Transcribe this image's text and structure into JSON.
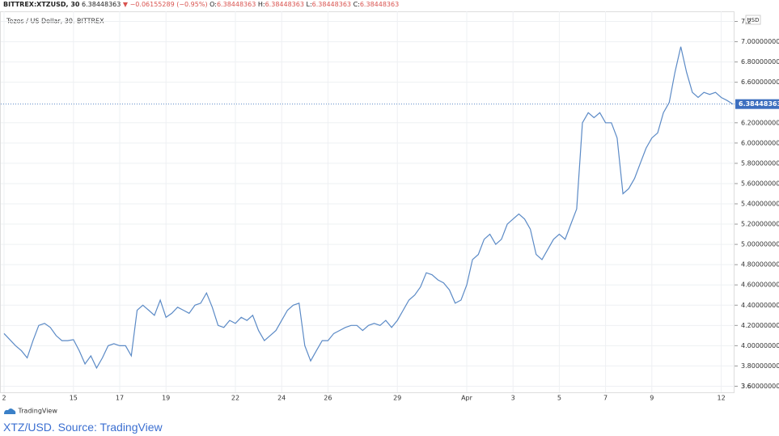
{
  "header": {
    "symbol": "BITTREX:XTZUSD, 30",
    "price": "6.38448363",
    "change": "▼ −0.06155289 (−0.95%)",
    "ohlc": [
      {
        "label": "O:",
        "value": "6.38448363"
      },
      {
        "label": "H:",
        "value": "6.38448363"
      },
      {
        "label": "L:",
        "value": "6.38448363"
      },
      {
        "label": "C:",
        "value": "6.38448363"
      }
    ]
  },
  "chart_data": {
    "type": "line",
    "title": "Tezos / US Dollar, 30, BITTREX",
    "currency": "USD",
    "color": "#5b8ac6",
    "categories": [
      "2",
      null,
      null,
      null,
      null,
      null,
      null,
      null,
      null,
      null,
      null,
      null,
      "15",
      null,
      null,
      null,
      null,
      null,
      null,
      null,
      "17",
      null,
      null,
      null,
      null,
      null,
      null,
      null,
      "19",
      null,
      null,
      null,
      null,
      null,
      null,
      null,
      null,
      null,
      null,
      null,
      "22",
      null,
      null,
      null,
      null,
      null,
      null,
      null,
      "24",
      null,
      null,
      null,
      null,
      null,
      null,
      null,
      "26",
      null,
      null,
      null,
      null,
      null,
      null,
      null,
      null,
      null,
      null,
      null,
      "29",
      null,
      null,
      null,
      null,
      null,
      null,
      null,
      null,
      null,
      null,
      null,
      "Apr",
      null,
      null,
      null,
      null,
      null,
      null,
      null,
      "3",
      null,
      null,
      null,
      null,
      null,
      null,
      null,
      "5",
      null,
      null,
      null,
      null,
      null,
      null,
      null,
      "7",
      null,
      null,
      null,
      null,
      null,
      null,
      null,
      "9",
      null,
      null,
      null,
      null,
      null,
      null,
      null,
      null,
      null,
      null,
      null,
      "12",
      null,
      null
    ],
    "values": [
      4.12,
      4.06,
      4.0,
      3.95,
      3.88,
      4.05,
      4.2,
      4.22,
      4.18,
      4.1,
      4.05,
      4.05,
      4.06,
      3.95,
      3.82,
      3.9,
      3.78,
      3.88,
      4.0,
      4.02,
      4.0,
      4.0,
      3.9,
      4.35,
      4.4,
      4.35,
      4.3,
      4.45,
      4.28,
      4.32,
      4.38,
      4.35,
      4.32,
      4.4,
      4.42,
      4.52,
      4.38,
      4.2,
      4.18,
      4.25,
      4.22,
      4.28,
      4.25,
      4.3,
      4.15,
      4.05,
      4.1,
      4.15,
      4.25,
      4.35,
      4.4,
      4.42,
      4.0,
      3.85,
      3.95,
      4.05,
      4.05,
      4.12,
      4.15,
      4.18,
      4.2,
      4.2,
      4.15,
      4.2,
      4.22,
      4.2,
      4.25,
      4.18,
      4.25,
      4.35,
      4.45,
      4.5,
      4.58,
      4.72,
      4.7,
      4.65,
      4.62,
      4.55,
      4.42,
      4.45,
      4.6,
      4.85,
      4.9,
      5.05,
      5.1,
      5.0,
      5.05,
      5.2,
      5.25,
      5.3,
      5.25,
      5.15,
      4.9,
      4.85,
      4.95,
      5.05,
      5.1,
      5.05,
      5.2,
      5.35,
      6.2,
      6.3,
      6.25,
      6.3,
      6.2,
      6.2,
      6.05,
      5.5,
      5.55,
      5.65,
      5.8,
      5.95,
      6.05,
      6.1,
      6.3,
      6.4,
      6.7,
      6.95,
      6.7,
      6.5,
      6.45,
      6.5,
      6.48,
      6.5,
      6.45,
      6.42,
      6.38448363
    ],
    "last_price": 6.38448363,
    "ylim": [
      3.54,
      7.3
    ],
    "yticks": [
      3.6,
      {
        "value": 3.6,
        "label": "3.60000000"
      },
      {
        "value": 3.8,
        "label": "3.80000000"
      },
      {
        "value": 4,
        "label": "4.00000000"
      },
      {
        "value": 4.2,
        "label": "4.20000000"
      },
      {
        "value": 4.4,
        "label": "4.40000000"
      },
      {
        "value": 4.6,
        "label": "4.60000000"
      },
      {
        "value": 4.8,
        "label": "4.80000000"
      },
      {
        "value": 5,
        "label": "5.00000000"
      },
      {
        "value": 5.2,
        "label": "5.20000000"
      },
      {
        "value": 5.4,
        "label": "5.40000000"
      },
      {
        "value": 5.6,
        "label": "5.60000000"
      },
      {
        "value": 5.8,
        "label": "5.80000000"
      },
      {
        "value": 6,
        "label": "6.00000000"
      },
      {
        "value": 6.2,
        "label": "6.20000000"
      },
      {
        "value": 6.6,
        "label": "6.60000000"
      },
      {
        "value": 6.8,
        "label": "6.80000000"
      },
      {
        "value": 7,
        "label": "7.00000000"
      },
      7.2
    ],
    "grid": true
  },
  "logo": "TradingView",
  "caption": "XTZ/USD. Source: TradingView"
}
